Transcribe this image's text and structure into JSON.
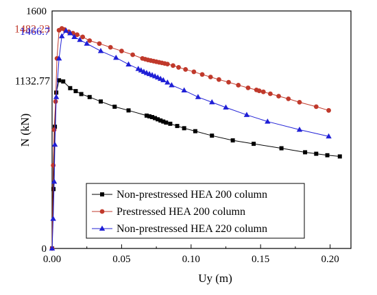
{
  "chart_data": {
    "type": "line",
    "title": "",
    "xlabel": "Uy (m)",
    "ylabel": "N (kN)",
    "xlim": [
      0,
      0.215
    ],
    "ylim": [
      0,
      1600
    ],
    "x_ticks": [
      0.0,
      0.05,
      0.1,
      0.15,
      0.2
    ],
    "x_tick_labels": [
      "0.00",
      "0.05",
      "0.10",
      "0.15",
      "0.20"
    ],
    "y_tick_labels": [
      {
        "value": 1600,
        "label": "1600"
      },
      {
        "value": 0,
        "label": "0"
      }
    ],
    "grid": false,
    "legend_placement": "bottom-right",
    "annotations": [
      {
        "text": "1482.23",
        "y": 1482.23,
        "color": "#c0392b"
      },
      {
        "text": "1466.7",
        "y": 1466.7,
        "color": "#1f1fd6"
      },
      {
        "text": "1132.77",
        "y": 1132.77,
        "color": "#000000"
      }
    ],
    "series": [
      {
        "name": "Non-prestressed HEA 200 column",
        "color": "#000000",
        "marker": "square",
        "x": [
          0.0,
          0.001,
          0.002,
          0.003,
          0.005,
          0.008,
          0.013,
          0.017,
          0.021,
          0.027,
          0.035,
          0.045,
          0.055,
          0.068,
          0.07,
          0.072,
          0.074,
          0.076,
          0.078,
          0.08,
          0.082,
          0.085,
          0.09,
          0.095,
          0.103,
          0.115,
          0.13,
          0.145,
          0.165,
          0.182,
          0.19,
          0.198,
          0.207
        ],
        "y": [
          0,
          400,
          820,
          1050,
          1132.77,
          1125,
          1080,
          1060,
          1040,
          1020,
          990,
          955,
          930,
          895,
          890,
          885,
          878,
          870,
          862,
          855,
          848,
          840,
          825,
          810,
          790,
          760,
          728,
          705,
          675,
          648,
          638,
          628,
          620
        ]
      },
      {
        "name": "Prestressed HEA 200 column",
        "color": "#c0392b",
        "marker": "circle",
        "x": [
          0.0,
          0.0008,
          0.0015,
          0.0025,
          0.0035,
          0.005,
          0.007,
          0.009,
          0.012,
          0.015,
          0.018,
          0.022,
          0.027,
          0.034,
          0.042,
          0.05,
          0.058,
          0.065,
          0.067,
          0.069,
          0.071,
          0.073,
          0.075,
          0.077,
          0.079,
          0.081,
          0.083,
          0.087,
          0.091,
          0.096,
          0.102,
          0.108,
          0.114,
          0.12,
          0.127,
          0.134,
          0.141,
          0.147,
          0.149,
          0.152,
          0.157,
          0.163,
          0.17,
          0.178,
          0.19,
          0.199
        ],
        "y": [
          0,
          560,
          800,
          990,
          1280,
          1470,
          1482.23,
          1475,
          1460,
          1450,
          1440,
          1425,
          1400,
          1380,
          1355,
          1330,
          1305,
          1280,
          1275,
          1270,
          1266,
          1262,
          1258,
          1254,
          1250,
          1246,
          1242,
          1232,
          1220,
          1206,
          1190,
          1172,
          1155,
          1138,
          1120,
          1100,
          1082,
          1068,
          1062,
          1055,
          1042,
          1026,
          1008,
          985,
          955,
          930
        ]
      },
      {
        "name": "Non-prestressed HEA 220 column",
        "color": "#1f1fd6",
        "marker": "triangle",
        "x": [
          0.0,
          0.0008,
          0.0015,
          0.002,
          0.003,
          0.005,
          0.007,
          0.01,
          0.013,
          0.016,
          0.02,
          0.025,
          0.035,
          0.046,
          0.055,
          0.062,
          0.064,
          0.066,
          0.068,
          0.07,
          0.072,
          0.074,
          0.076,
          0.078,
          0.08,
          0.083,
          0.086,
          0.095,
          0.105,
          0.115,
          0.125,
          0.14,
          0.155,
          0.178,
          0.199
        ],
        "y": [
          0,
          200,
          450,
          700,
          1020,
          1280,
          1430,
          1466.7,
          1450,
          1425,
          1405,
          1380,
          1330,
          1285,
          1240,
          1210,
          1200,
          1190,
          1182,
          1175,
          1168,
          1160,
          1152,
          1143,
          1134,
          1118,
          1100,
          1065,
          1020,
          985,
          950,
          900,
          855,
          800,
          755
        ]
      }
    ]
  }
}
